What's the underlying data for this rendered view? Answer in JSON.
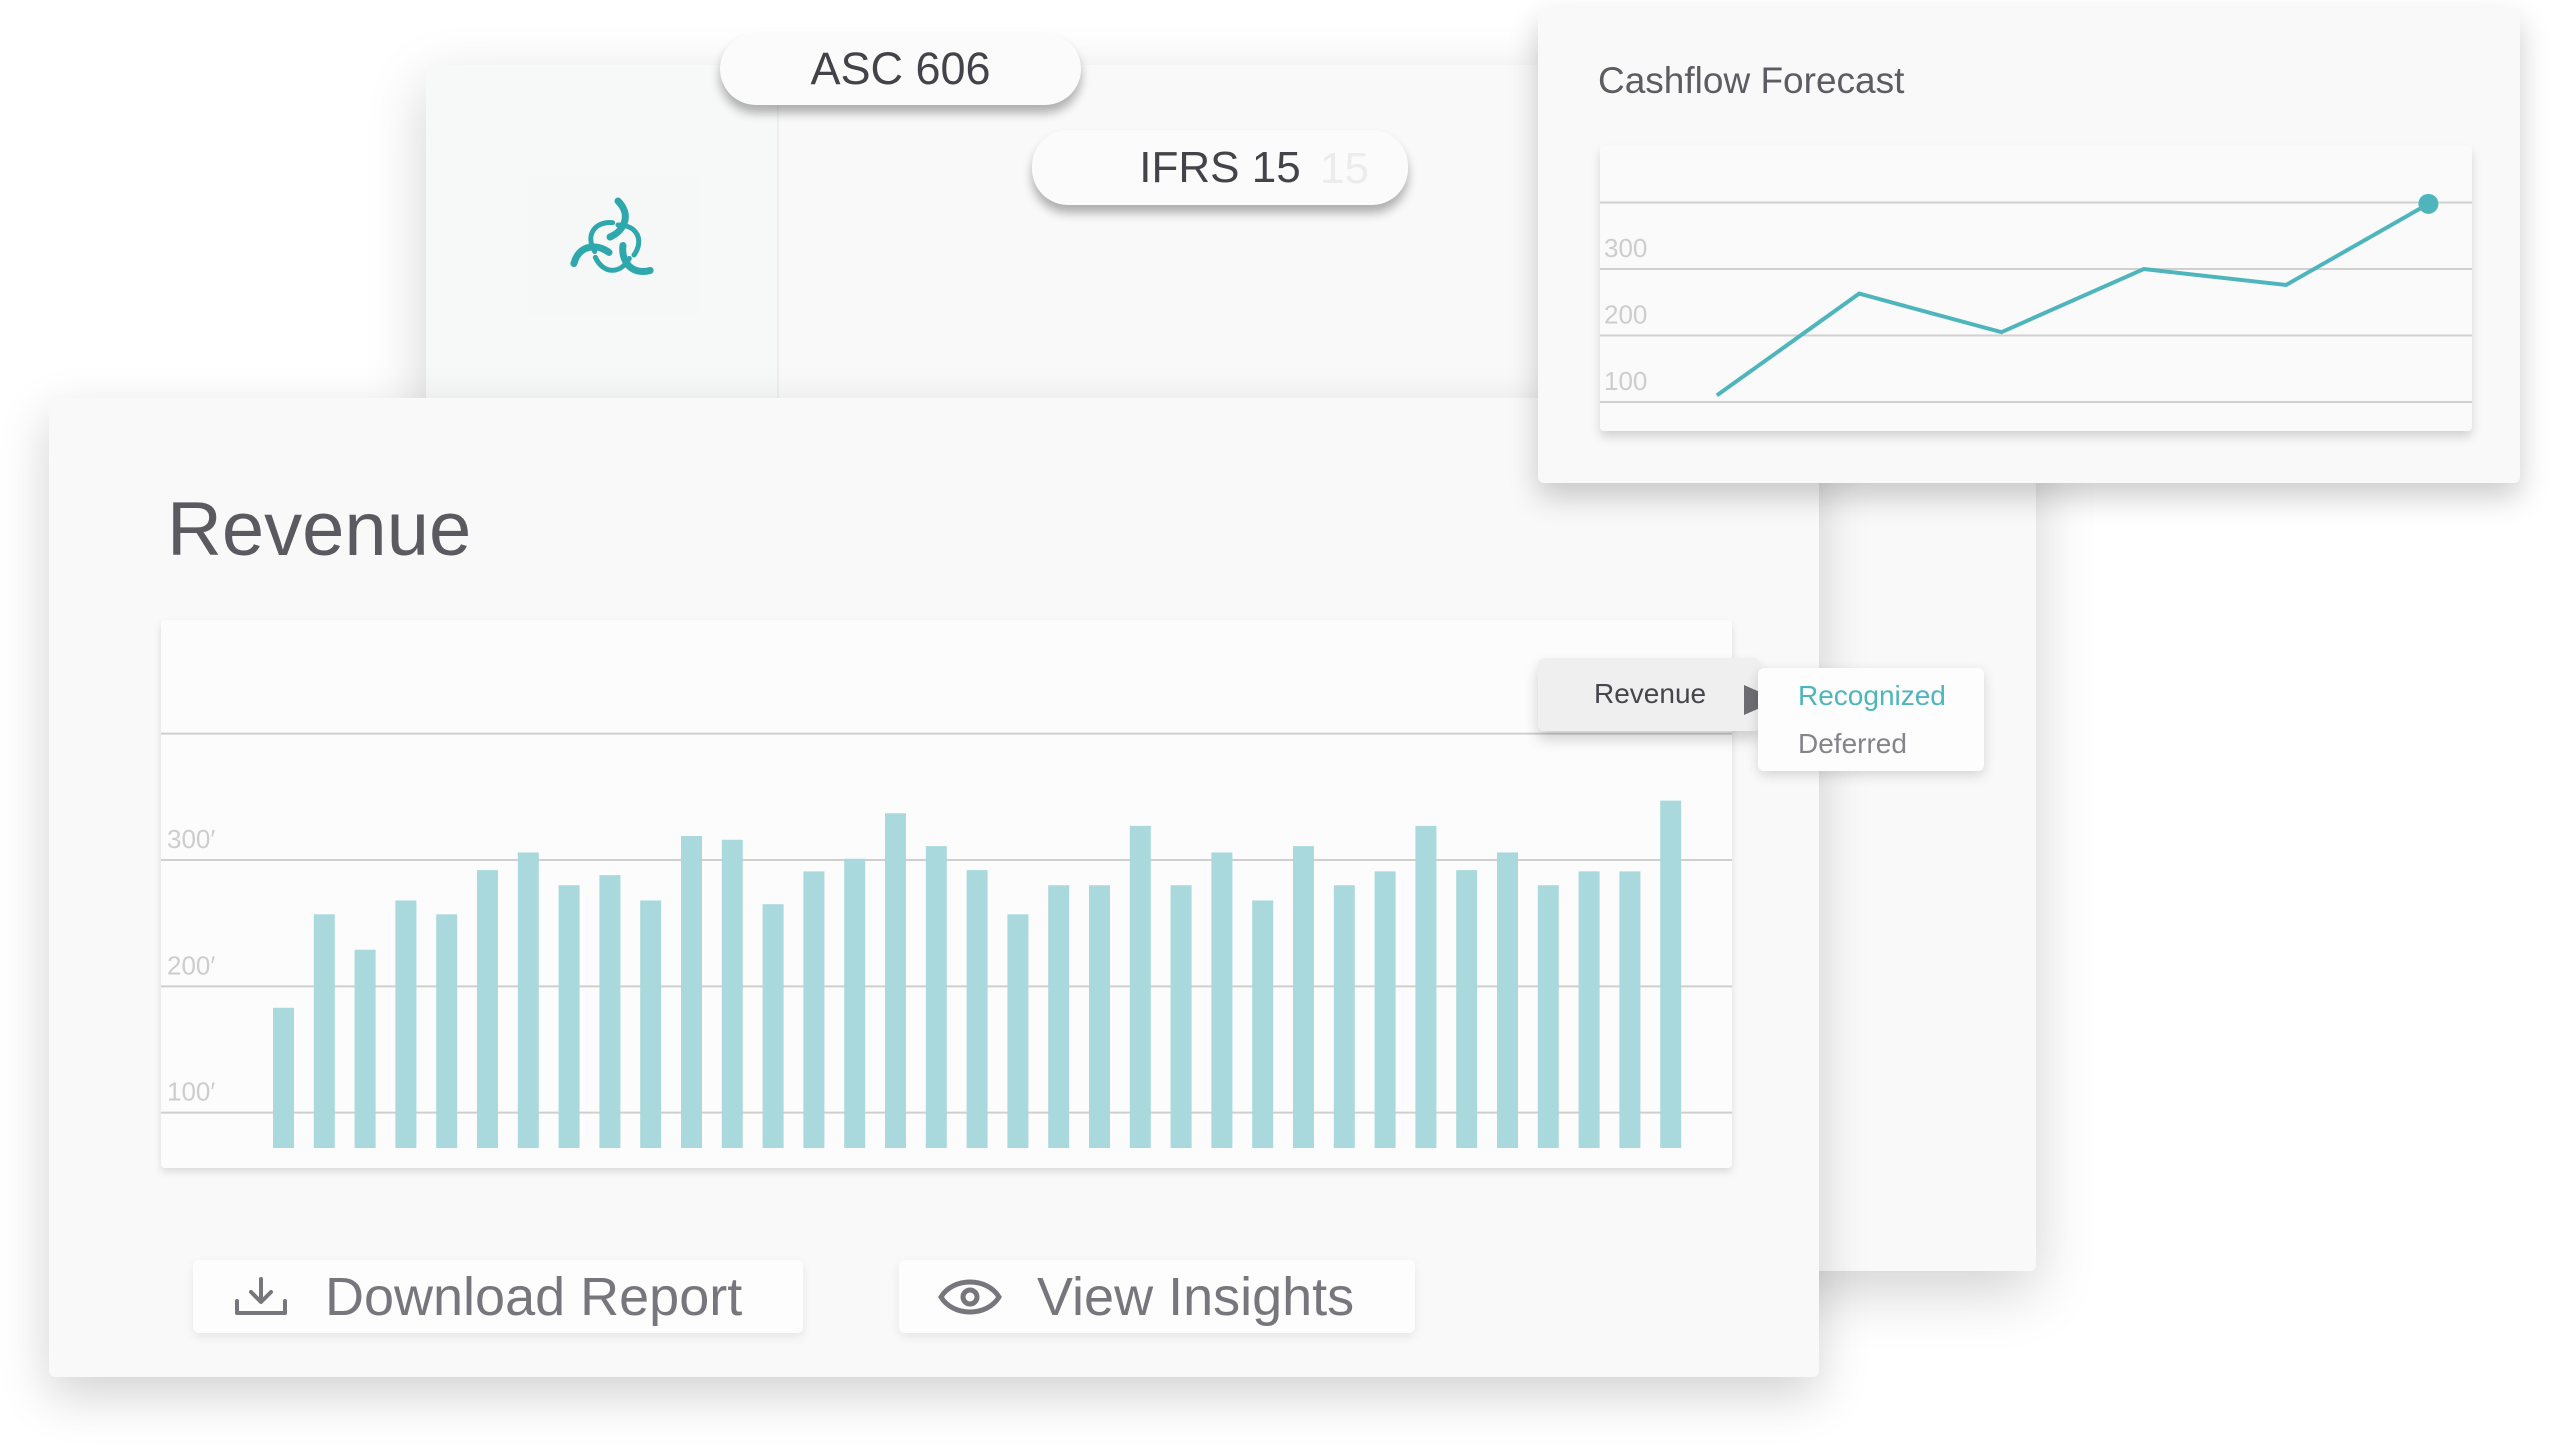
{
  "badges": {
    "asc": "ASC 606",
    "ifrs": "IFRS 15",
    "ifrs_ghost": "15"
  },
  "logo": {
    "icon": "swirl-logo-icon",
    "color": "#2fa8ad"
  },
  "cashflow": {
    "title": "Cashflow Forecast"
  },
  "revenue": {
    "title": "Revenue"
  },
  "tooltip": {
    "label": "Revenue",
    "options": [
      "Recognized",
      "Deferred"
    ],
    "selected": "Recognized"
  },
  "buttons": {
    "download": "Download Report",
    "download_icon": "download-icon",
    "insights": "View Insights",
    "insights_icon": "eye-icon"
  },
  "colors": {
    "accent": "#4fb5bd",
    "bar": "#a9d9dc",
    "text": "#5b5a60"
  },
  "chart_data": [
    {
      "type": "bar",
      "title": "Revenue",
      "ylim": [
        72,
        490
      ],
      "yticks": [
        100,
        200,
        300,
        400
      ],
      "ytick_labels": [
        "100′",
        "200′",
        "300′",
        ""
      ],
      "grid": true,
      "values": [
        183,
        257,
        229,
        268,
        257,
        292,
        306,
        280,
        288,
        268,
        319,
        316,
        265,
        291,
        301,
        337,
        311,
        292,
        257,
        280,
        280,
        327,
        280,
        306,
        268,
        311,
        280,
        291,
        327,
        292,
        306,
        280,
        291,
        291,
        347
      ]
    },
    {
      "type": "line",
      "title": "Cashflow Forecast",
      "ylim": [
        60,
        460
      ],
      "yticks": [
        100,
        200,
        300,
        400
      ],
      "ytick_labels": [
        "100",
        "200",
        "300",
        ""
      ],
      "grid": true,
      "values": [
        110,
        263,
        205,
        300,
        276,
        398
      ],
      "last_point_marker": true
    }
  ]
}
